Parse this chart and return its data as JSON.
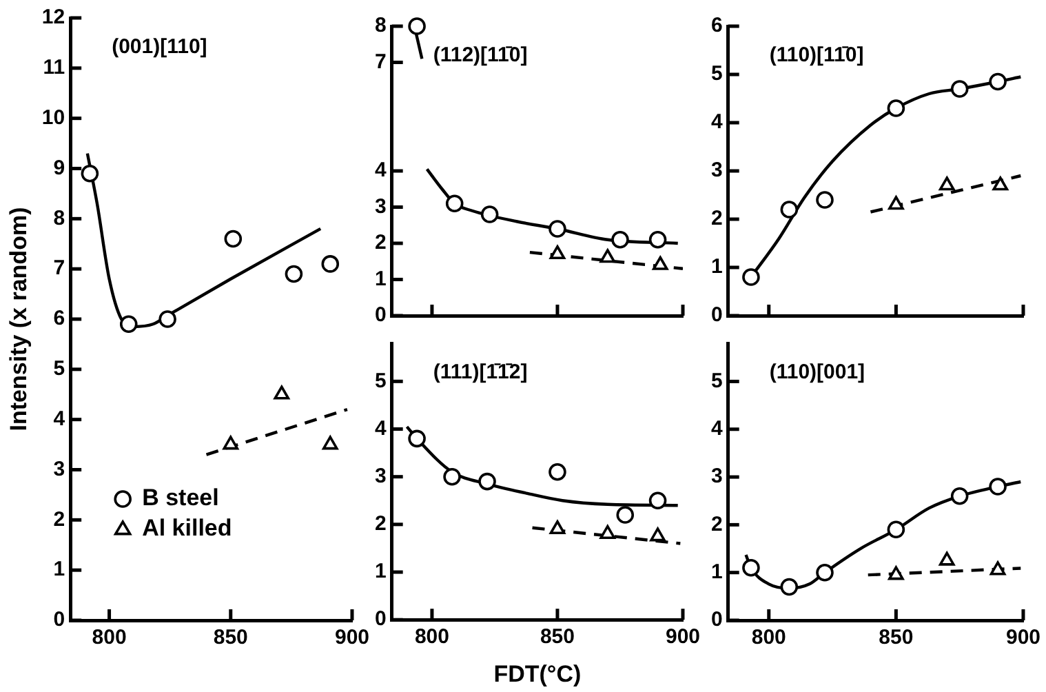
{
  "chart_data": [
    {
      "type": "scatter",
      "title": "(001)[110]",
      "ylabel": "Intensity (x random)",
      "xlim": [
        784,
        900
      ],
      "xticks": [
        800,
        850,
        900
      ],
      "ylim": [
        0,
        12
      ],
      "yticks": [
        0,
        1,
        2,
        3,
        4,
        5,
        6,
        7,
        8,
        9,
        10,
        11,
        12
      ],
      "legend": "bottom left",
      "series": [
        {
          "name": "B steel",
          "type": "scatter",
          "marker": "circle",
          "color": "#000000",
          "x": [
            792,
            808,
            824,
            851,
            876,
            891
          ],
          "values": [
            8.9,
            5.9,
            6.0,
            7.6,
            6.9,
            7.1
          ]
        },
        {
          "name": "Al killed",
          "type": "scatter",
          "marker": "triangle",
          "color": "#000000",
          "x": [
            850,
            871,
            891
          ],
          "values": [
            3.5,
            4.5,
            3.5
          ]
        },
        {
          "type": "line",
          "marker": "none",
          "line_style": "solid",
          "color": "#000000",
          "x": [
            791,
            795,
            800,
            805,
            810,
            818,
            825,
            850,
            887
          ],
          "values": [
            9.3,
            8.3,
            6.8,
            6.0,
            5.85,
            5.9,
            6.1,
            6.8,
            7.8
          ]
        },
        {
          "type": "line",
          "marker": "none",
          "line_style": "dashed",
          "color": "#000000",
          "x": [
            840,
            898
          ],
          "values": [
            3.3,
            4.2
          ]
        }
      ]
    },
    {
      "type": "scatter",
      "title": "(112)[11̄0]",
      "xlim": [
        784,
        900
      ],
      "xticks": [
        800,
        850,
        900
      ],
      "ylim": [
        0,
        8
      ],
      "yticks": [
        0,
        1,
        2,
        3,
        4,
        7,
        8
      ],
      "tick_labels": "y",
      "series": [
        {
          "type": "scatter",
          "marker": "circle",
          "color": "#000000",
          "x": [
            794,
            809,
            823,
            850,
            875,
            890
          ],
          "values": [
            8,
            3.1,
            2.8,
            2.4,
            2.1,
            2.1
          ]
        },
        {
          "type": "scatter",
          "marker": "triangle",
          "color": "#000000",
          "x": [
            850,
            870,
            891
          ],
          "values": [
            1.7,
            1.6,
            1.4
          ]
        },
        {
          "type": "line",
          "marker": "none",
          "line_style": "solid",
          "color": "#000000",
          "x": [
            793,
            796,
            797,
            798,
            804,
            809,
            816,
            834,
            850,
            870,
            898
          ],
          "values": [
            8,
            7.1,
            null,
            4.05,
            3.5,
            3.1,
            2.9,
            2.6,
            2.4,
            2.1,
            2.0
          ]
        },
        {
          "type": "line",
          "marker": "none",
          "line_style": "dashed",
          "color": "#000000",
          "x": [
            839,
            900
          ],
          "values": [
            1.75,
            1.3
          ]
        }
      ]
    },
    {
      "type": "scatter",
      "title": "(110)[11̄0]",
      "xlim": [
        784,
        900
      ],
      "xticks": [
        800,
        850,
        900
      ],
      "ylim": [
        0,
        6
      ],
      "yticks": [
        0,
        1,
        2,
        3,
        4,
        5,
        6
      ],
      "tick_labels": "y",
      "series": [
        {
          "type": "scatter",
          "marker": "circle",
          "color": "#000000",
          "x": [
            793,
            808,
            822,
            850,
            875,
            890
          ],
          "values": [
            0.8,
            2.2,
            2.4,
            4.3,
            4.7,
            4.85
          ]
        },
        {
          "type": "scatter",
          "marker": "triangle",
          "color": "#000000",
          "x": [
            850,
            870,
            891
          ],
          "values": [
            2.3,
            2.7,
            2.7
          ]
        },
        {
          "type": "line",
          "marker": "none",
          "line_style": "solid",
          "color": "#000000",
          "x": [
            793,
            804,
            814,
            825,
            840,
            850,
            863,
            875,
            890,
            899
          ],
          "values": [
            0.8,
            1.6,
            2.45,
            3.2,
            3.95,
            4.3,
            4.6,
            4.7,
            4.85,
            4.95
          ]
        },
        {
          "type": "line",
          "marker": "none",
          "line_style": "dashed",
          "color": "#000000",
          "x": [
            840,
            899
          ],
          "values": [
            2.15,
            2.9
          ]
        }
      ]
    },
    {
      "type": "scatter",
      "title": "(111)[1̄1̄2]",
      "xlabel": "FDT(°C)",
      "xlim": [
        784,
        900
      ],
      "xticks": [
        800,
        850,
        900
      ],
      "ylim": [
        0,
        5.8
      ],
      "yticks": [
        0,
        1,
        2,
        3,
        4,
        5
      ],
      "series": [
        {
          "type": "scatter",
          "marker": "circle",
          "color": "#000000",
          "x": [
            794,
            808,
            822,
            850,
            877,
            890
          ],
          "values": [
            3.8,
            3.0,
            2.9,
            3.1,
            2.2,
            2.5
          ]
        },
        {
          "type": "scatter",
          "marker": "triangle",
          "color": "#000000",
          "x": [
            850,
            870,
            890
          ],
          "values": [
            1.9,
            1.8,
            1.75
          ]
        },
        {
          "type": "line",
          "marker": "none",
          "line_style": "solid",
          "color": "#000000",
          "x": [
            790,
            794,
            808,
            822,
            838,
            852,
            870,
            898
          ],
          "values": [
            4.05,
            3.8,
            3.1,
            2.85,
            2.65,
            2.5,
            2.42,
            2.4
          ]
        },
        {
          "type": "line",
          "marker": "none",
          "line_style": "dashed",
          "color": "#000000",
          "x": [
            840,
            899
          ],
          "values": [
            1.93,
            1.6
          ]
        }
      ]
    },
    {
      "type": "scatter",
      "title": "(110)[001]",
      "xlim": [
        784,
        900
      ],
      "xticks": [
        800,
        850,
        900
      ],
      "ylim": [
        0,
        5.8
      ],
      "yticks": [
        0,
        1,
        2,
        3,
        4,
        5
      ],
      "series": [
        {
          "type": "scatter",
          "marker": "circle",
          "color": "#000000",
          "x": [
            793,
            808,
            822,
            850,
            875,
            890
          ],
          "values": [
            1.1,
            0.7,
            1.0,
            1.9,
            2.6,
            2.8
          ]
        },
        {
          "type": "scatter",
          "marker": "triangle",
          "color": "#000000",
          "x": [
            850,
            870,
            890
          ],
          "values": [
            0.95,
            1.25,
            1.05
          ]
        },
        {
          "type": "line",
          "marker": "none",
          "line_style": "solid",
          "color": "#000000",
          "x": [
            791,
            793,
            800,
            808,
            816,
            822,
            836,
            850,
            863,
            875,
            890,
            899
          ],
          "values": [
            1.37,
            1.1,
            0.76,
            0.67,
            0.76,
            1.0,
            1.5,
            1.9,
            2.35,
            2.6,
            2.8,
            2.9
          ]
        },
        {
          "type": "line",
          "marker": "none",
          "line_style": "dashed",
          "color": "#000000",
          "x": [
            839,
            899
          ],
          "values": [
            0.95,
            1.09
          ]
        }
      ]
    }
  ]
}
